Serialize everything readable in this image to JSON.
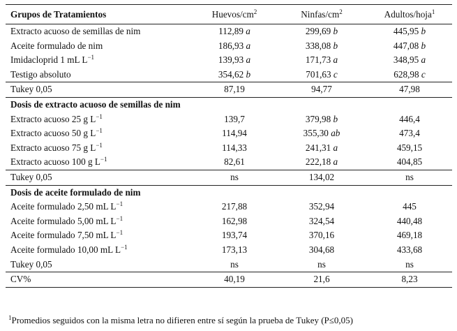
{
  "header": {
    "col1": "Grupos de Tratamientos",
    "col2": "Huevos/cm",
    "col2_sup": "2",
    "col3": "Ninfas/cm",
    "col3_sup": "2",
    "col4": "Adultos/hoja",
    "col4_sup": "1"
  },
  "group1": {
    "rows": [
      {
        "label": "Extracto acuoso de semillas de nim",
        "sup": "",
        "huevos": "112,89",
        "huevos_l": "a",
        "ninfas": "299,69",
        "ninfas_l": "b",
        "adultos": "445,95",
        "adultos_l": "b"
      },
      {
        "label": "Aceite formulado de nim",
        "sup": "",
        "huevos": "186,93",
        "huevos_l": "a",
        "ninfas": "338,08",
        "ninfas_l": "b",
        "adultos": "447,08",
        "adultos_l": "b"
      },
      {
        "label": "Imidacloprid 1 mL L",
        "sup": "−1",
        "huevos": "139,93",
        "huevos_l": "a",
        "ninfas": "171,73",
        "ninfas_l": "a",
        "adultos": "348,95",
        "adultos_l": "a"
      },
      {
        "label": "Testigo absoluto",
        "sup": "",
        "huevos": "354,62",
        "huevos_l": "b",
        "ninfas": "701,63",
        "ninfas_l": "c",
        "adultos": "628,98",
        "adultos_l": "c"
      }
    ],
    "tukey": {
      "label": "Tukey 0,05",
      "huevos": "87,19",
      "ninfas": "94,77",
      "adultos": "47,98"
    }
  },
  "group2": {
    "title": "Dosis de extracto acuoso de semillas de nim",
    "rows": [
      {
        "label": "Extracto acuoso 25 g L",
        "sup": "−1",
        "huevos": "139,7",
        "huevos_l": "",
        "ninfas": "379,98",
        "ninfas_l": "b",
        "adultos": "446,4",
        "adultos_l": ""
      },
      {
        "label": "Extracto acuoso 50 g L",
        "sup": "−1",
        "huevos": "114,94",
        "huevos_l": "",
        "ninfas": "355,30",
        "ninfas_l": "ab",
        "adultos": "473,4",
        "adultos_l": ""
      },
      {
        "label": "Extracto acuoso 75 g L",
        "sup": "−1",
        "huevos": "114,33",
        "huevos_l": "",
        "ninfas": "241,31",
        "ninfas_l": "a",
        "adultos": "459,15",
        "adultos_l": ""
      },
      {
        "label": "Extracto acuoso 100 g L",
        "sup": "−1",
        "huevos": "82,61",
        "huevos_l": "",
        "ninfas": "222,18",
        "ninfas_l": "a",
        "adultos": "404,85",
        "adultos_l": ""
      }
    ],
    "tukey": {
      "label": "Tukey 0,05",
      "huevos": "ns",
      "ninfas": "134,02",
      "adultos": "ns"
    }
  },
  "group3": {
    "title": "Dosis de aceite formulado de nim",
    "rows": [
      {
        "label": "Aceite formulado 2,50 mL L",
        "sup": "−1",
        "huevos": "217,88",
        "huevos_l": "",
        "ninfas": "352,94",
        "ninfas_l": "",
        "adultos": "445",
        "adultos_l": ""
      },
      {
        "label": "Aceite formulado 5,00 mL L",
        "sup": "−1",
        "huevos": "162,98",
        "huevos_l": "",
        "ninfas": "324,54",
        "ninfas_l": "",
        "adultos": "440,48",
        "adultos_l": ""
      },
      {
        "label": "Aceite formulado 7,50 mL L",
        "sup": "−1",
        "huevos": "193,74",
        "huevos_l": "",
        "ninfas": "370,16",
        "ninfas_l": "",
        "adultos": "469,18",
        "adultos_l": ""
      },
      {
        "label": "Aceite formulado 10,00 mL L",
        "sup": "−1",
        "huevos": "173,13",
        "huevos_l": "",
        "ninfas": "304,68",
        "ninfas_l": "",
        "adultos": "433,68",
        "adultos_l": ""
      }
    ],
    "tukey": {
      "label": "Tukey 0,05",
      "huevos": "ns",
      "ninfas": "ns",
      "adultos": "ns"
    }
  },
  "cv": {
    "label": "CV%",
    "huevos": "40,19",
    "ninfas": "21,6",
    "adultos": "8,23"
  },
  "footnote": {
    "sup": "1",
    "text": "Promedios seguidos con la misma letra no difieren entre sí según la prueba de Tukey (P≤0,05)"
  }
}
